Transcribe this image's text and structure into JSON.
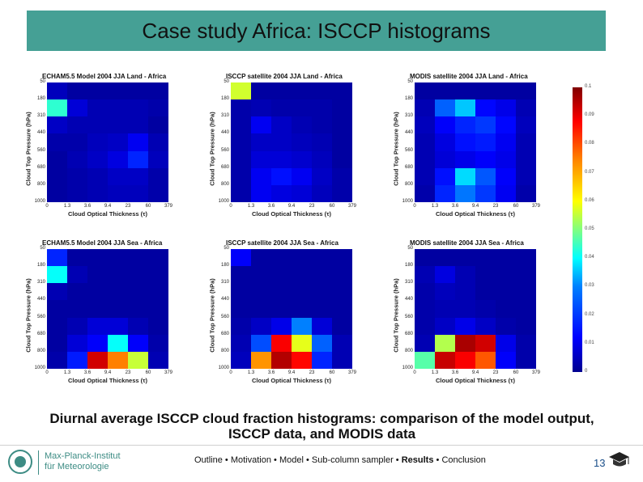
{
  "title": "Case study Africa: ISCCP histograms",
  "caption": "Diurnal average ISCCP cloud fraction histograms: comparison of the model output, ISCCP data, and MODIS data",
  "axes": {
    "ylabel": "Cloud Top Pressure (hPa)",
    "xlabel": "Cloud Optical Thickness (τ)",
    "yticks": [
      "50",
      "180",
      "310",
      "440",
      "560",
      "680",
      "800",
      "1000"
    ],
    "xticks": [
      "0",
      "1.3",
      "3.6",
      "9.4",
      "23",
      "60",
      "379"
    ]
  },
  "colorbar": {
    "ticks": [
      "0",
      "0.01",
      "0.02",
      "0.03",
      "0.04",
      "0.05",
      "0.06",
      "0.07",
      "0.08",
      "0.09",
      "0.1"
    ],
    "colors": [
      "#00008f",
      "#0000ff",
      "#0080ff",
      "#00ffff",
      "#80ff80",
      "#ffff00",
      "#ff8000",
      "#ff0000",
      "#800000"
    ]
  },
  "chart_data": [
    {
      "type": "heatmap",
      "title": "ECHAM5.5 Model 2004 JJA Land - Africa",
      "values": [
        [
          0.005,
          0.002,
          0.002,
          0.002,
          0.002,
          0.002
        ],
        [
          0.042,
          0.008,
          0.004,
          0.004,
          0.004,
          0.003
        ],
        [
          0.006,
          0.004,
          0.004,
          0.004,
          0.004,
          0.002
        ],
        [
          0.003,
          0.003,
          0.005,
          0.006,
          0.011,
          0.004
        ],
        [
          0.002,
          0.004,
          0.006,
          0.009,
          0.016,
          0.005
        ],
        [
          0.002,
          0.003,
          0.004,
          0.006,
          0.006,
          0.003
        ],
        [
          0.002,
          0.003,
          0.004,
          0.005,
          0.005,
          0.003
        ]
      ]
    },
    {
      "type": "heatmap",
      "title": "ISCCP satellite 2004 JJA Land - Africa",
      "values": [
        [
          0.058,
          0.002,
          0.002,
          0.002,
          0.002,
          0.002
        ],
        [
          0.003,
          0.004,
          0.003,
          0.003,
          0.003,
          0.002
        ],
        [
          0.003,
          0.011,
          0.006,
          0.004,
          0.003,
          0.002
        ],
        [
          0.003,
          0.006,
          0.006,
          0.005,
          0.004,
          0.002
        ],
        [
          0.003,
          0.008,
          0.008,
          0.007,
          0.005,
          0.002
        ],
        [
          0.003,
          0.011,
          0.014,
          0.011,
          0.006,
          0.003
        ],
        [
          0.003,
          0.011,
          0.009,
          0.008,
          0.005,
          0.003
        ]
      ]
    },
    {
      "type": "heatmap",
      "title": "MODIS satellite 2004 JJA Land - Africa",
      "values": [
        [
          0.002,
          0.002,
          0.002,
          0.002,
          0.002,
          0.002
        ],
        [
          0.004,
          0.022,
          0.032,
          0.013,
          0.01,
          0.004
        ],
        [
          0.005,
          0.012,
          0.016,
          0.018,
          0.013,
          0.005
        ],
        [
          0.004,
          0.009,
          0.014,
          0.015,
          0.011,
          0.004
        ],
        [
          0.004,
          0.008,
          0.01,
          0.012,
          0.01,
          0.004
        ],
        [
          0.004,
          0.014,
          0.034,
          0.021,
          0.012,
          0.004
        ],
        [
          0.003,
          0.016,
          0.024,
          0.018,
          0.011,
          0.003
        ]
      ]
    },
    {
      "type": "heatmap",
      "title": "ECHAM5.5 Model 2004 JJA Sea - Africa",
      "values": [
        [
          0.016,
          0.002,
          0.002,
          0.002,
          0.002,
          0.002
        ],
        [
          0.038,
          0.004,
          0.002,
          0.002,
          0.002,
          0.002
        ],
        [
          0.004,
          0.002,
          0.002,
          0.002,
          0.002,
          0.002
        ],
        [
          0.002,
          0.002,
          0.002,
          0.002,
          0.002,
          0.002
        ],
        [
          0.002,
          0.004,
          0.008,
          0.008,
          0.004,
          0.002
        ],
        [
          0.002,
          0.008,
          0.012,
          0.038,
          0.012,
          0.003
        ],
        [
          0.003,
          0.015,
          0.092,
          0.075,
          0.057,
          0.004
        ]
      ]
    },
    {
      "type": "heatmap",
      "title": "ISCCP satellite 2004 JJA Sea - Africa",
      "values": [
        [
          0.012,
          0.002,
          0.002,
          0.002,
          0.002,
          0.002
        ],
        [
          0.002,
          0.002,
          0.002,
          0.002,
          0.002,
          0.002
        ],
        [
          0.002,
          0.002,
          0.002,
          0.002,
          0.002,
          0.002
        ],
        [
          0.002,
          0.002,
          0.002,
          0.002,
          0.002,
          0.002
        ],
        [
          0.003,
          0.006,
          0.01,
          0.025,
          0.008,
          0.002
        ],
        [
          0.004,
          0.02,
          0.088,
          0.06,
          0.022,
          0.004
        ],
        [
          0.005,
          0.073,
          0.095,
          0.087,
          0.016,
          0.004
        ]
      ]
    },
    {
      "type": "heatmap",
      "title": "MODIS satellite 2004 JJA Sea - Africa",
      "values": [
        [
          0.002,
          0.002,
          0.002,
          0.002,
          0.002,
          0.002
        ],
        [
          0.004,
          0.009,
          0.004,
          0.002,
          0.002,
          0.002
        ],
        [
          0.003,
          0.005,
          0.004,
          0.002,
          0.002,
          0.002
        ],
        [
          0.003,
          0.004,
          0.004,
          0.003,
          0.002,
          0.002
        ],
        [
          0.003,
          0.006,
          0.01,
          0.006,
          0.003,
          0.002
        ],
        [
          0.004,
          0.055,
          0.096,
          0.092,
          0.01,
          0.003
        ],
        [
          0.046,
          0.093,
          0.088,
          0.079,
          0.012,
          0.003
        ]
      ]
    }
  ],
  "footer": {
    "logo_line1": "Max-Planck-Institut",
    "logo_line2": "für Meteorologie",
    "nav": [
      {
        "label": "Outline",
        "active": false
      },
      {
        "label": "Motivation",
        "active": false
      },
      {
        "label": "Model",
        "active": false
      },
      {
        "label": "Sub-column sampler",
        "active": false
      },
      {
        "label": "Results",
        "active": true
      },
      {
        "label": "Conclusion",
        "active": false
      }
    ],
    "separator": " • ",
    "page_number": "13"
  }
}
